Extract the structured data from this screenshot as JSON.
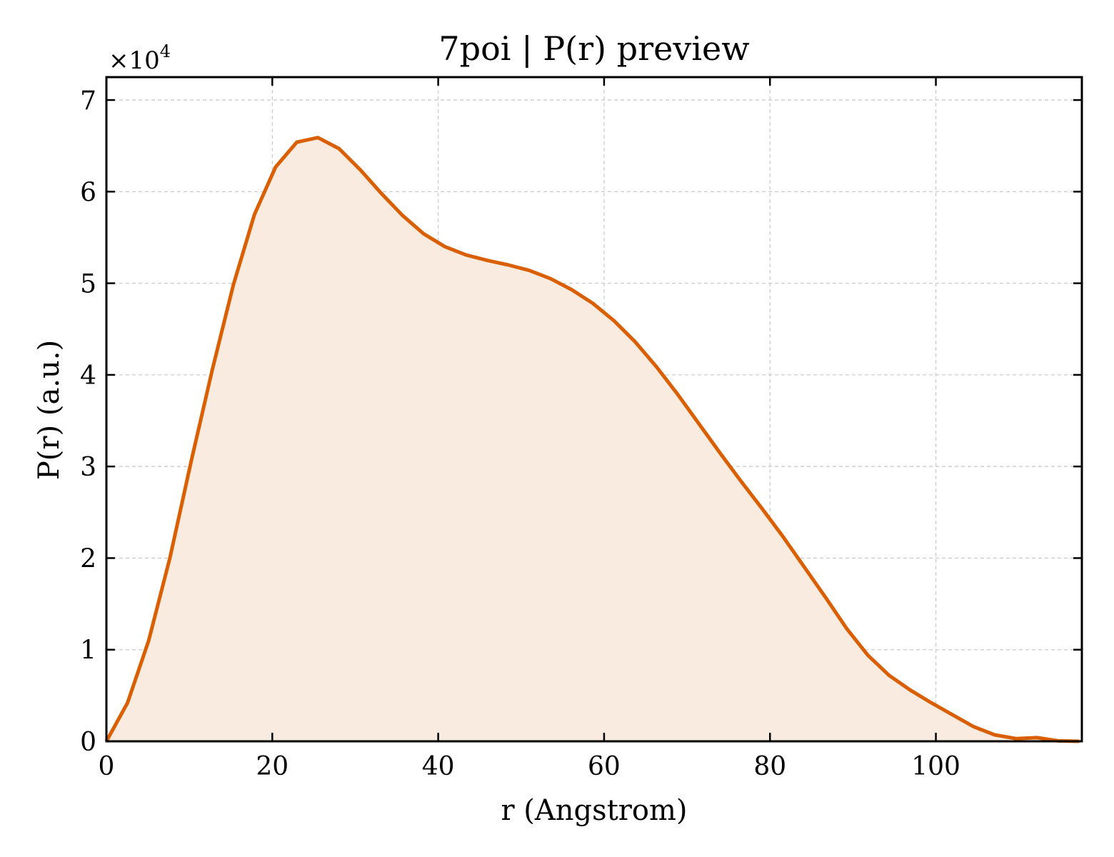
{
  "chart_data": {
    "type": "area",
    "title": "7poi | P(r) preview",
    "xlabel": "r (Angstrom)",
    "ylabel": "P(r) (a.u.)",
    "y_multiplier_base": "×10",
    "y_multiplier_exp": "4",
    "xlim": [
      0,
      117.6
    ],
    "ylim": [
      0,
      72500
    ],
    "xticks": [
      0,
      20,
      40,
      60,
      80,
      100
    ],
    "yticks": [
      0,
      10000,
      20000,
      30000,
      40000,
      50000,
      60000,
      70000
    ],
    "ytick_labels": [
      "0",
      "1",
      "2",
      "3",
      "4",
      "5",
      "6",
      "7"
    ],
    "grid": true,
    "line_color": "#d95f02",
    "fill_color": "#f9ebe0",
    "series": [
      {
        "x": [
          0,
          2.55,
          5.1,
          7.65,
          10.2,
          12.75,
          15.3,
          17.85,
          20.4,
          22.95,
          25.5,
          28.05,
          30.6,
          33.15,
          35.7,
          38.25,
          40.8,
          43.35,
          45.9,
          48.45,
          51.0,
          53.55,
          56.1,
          58.65,
          61.2,
          63.75,
          66.3,
          68.85,
          71.4,
          73.95,
          76.5,
          79.05,
          81.6,
          84.15,
          86.7,
          89.25,
          91.8,
          94.35,
          96.9,
          99.45,
          102.0,
          104.55,
          107.1,
          109.65,
          112.2,
          114.75,
          117.3
        ],
        "y": [
          0,
          4200,
          11000,
          20000,
          30500,
          40500,
          49800,
          57500,
          62700,
          65400,
          65900,
          64700,
          62400,
          59800,
          57400,
          55400,
          54000,
          53100,
          52500,
          52000,
          51400,
          50500,
          49300,
          47800,
          45900,
          43600,
          40900,
          37900,
          34700,
          31500,
          28400,
          25400,
          22300,
          19000,
          15700,
          12300,
          9400,
          7200,
          5600,
          4200,
          2900,
          1600,
          700,
          300,
          400,
          50,
          0
        ]
      }
    ]
  }
}
